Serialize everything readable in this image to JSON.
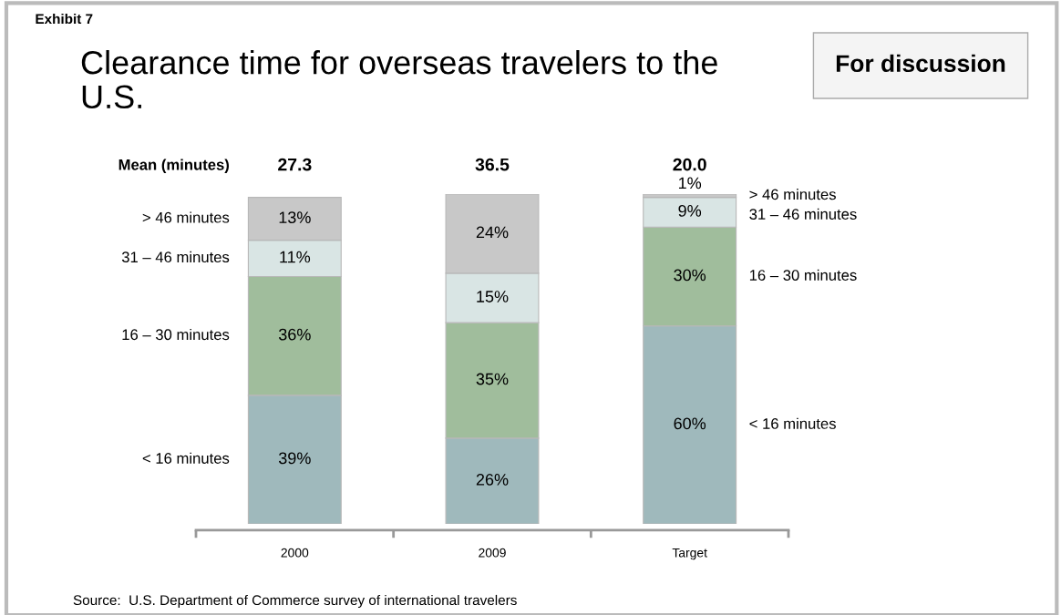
{
  "chart_data": {
    "type": "bar",
    "stacked": true,
    "legend": false,
    "grid": false,
    "tick_labels": "x",
    "title": "Clearance time for overseas travelers to the U.S.",
    "subtitle": "Exhibit 7",
    "categories": [
      "2000",
      "2009",
      "Target"
    ],
    "series": [
      {
        "name": "< 16 minutes",
        "color": "#9fb9bc",
        "values": [
          39,
          26,
          60
        ],
        "value_labels": [
          "39%",
          "26%",
          "60%"
        ]
      },
      {
        "name": "16 – 30 minutes",
        "color": "#a0bd9c",
        "values": [
          36,
          35,
          30
        ],
        "value_labels": [
          "36%",
          "35%",
          "30%"
        ]
      },
      {
        "name": "31 – 46 minutes",
        "color": "#d9e5e4",
        "values": [
          11,
          15,
          9
        ],
        "value_labels": [
          "11%",
          "15%",
          "9%"
        ]
      },
      {
        "name": "> 46 minutes",
        "color": "#c8c8c8",
        "values": [
          13,
          24,
          1
        ],
        "value_labels": [
          "13%",
          "24%",
          "1%"
        ]
      }
    ],
    "annotations": [
      "Mean (minutes)",
      "For discussion",
      "Source:  U.S. Department of Commerce survey of international travelers",
      "27.3",
      "36.5",
      "20.0"
    ]
  }
}
